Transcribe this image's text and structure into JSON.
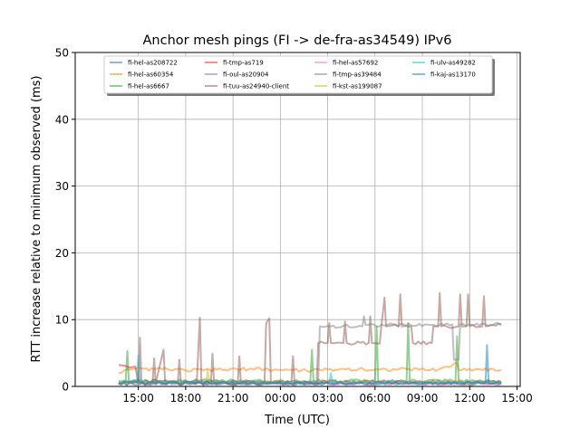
{
  "chart_data": {
    "type": "line",
    "title": "Anchor mesh pings (FI -> de-fra-as34549) IPv6",
    "xlabel": "Time (UTC)",
    "ylabel": "RTT increase relative to minimum observed (ms)",
    "x_unit": "hours since 00:00 of first day",
    "xlim": [
      11.0,
      39.2
    ],
    "ylim": [
      0,
      50
    ],
    "grid": true,
    "legend_placement": "upper center",
    "xticks": [
      {
        "value": 15,
        "label": "15:00"
      },
      {
        "value": 18,
        "label": "18:00"
      },
      {
        "value": 21,
        "label": "21:00"
      },
      {
        "value": 24,
        "label": "00:00"
      },
      {
        "value": 27,
        "label": "03:00"
      },
      {
        "value": 30,
        "label": "06:00"
      },
      {
        "value": 33,
        "label": "09:00"
      },
      {
        "value": 36,
        "label": "12:00"
      },
      {
        "value": 39,
        "label": "15:00"
      }
    ],
    "yticks": [
      {
        "value": 0,
        "label": "0"
      },
      {
        "value": 10,
        "label": "10"
      },
      {
        "value": 20,
        "label": "20"
      },
      {
        "value": 30,
        "label": "30"
      },
      {
        "value": 40,
        "label": "40"
      },
      {
        "value": 50,
        "label": "50"
      }
    ],
    "series": [
      {
        "name": "fi-hel-as208722",
        "color": "#1f77b4",
        "points": [
          [
            13.75,
            0.4
          ],
          [
            20,
            0.5
          ],
          [
            26,
            0.4
          ],
          [
            32,
            0.5
          ],
          [
            38,
            0.4
          ]
        ]
      },
      {
        "name": "fi-hel-as60354",
        "color": "#ff7f0e",
        "points": [
          [
            13.75,
            2.0
          ],
          [
            14.5,
            2.5
          ],
          [
            16,
            2.6
          ],
          [
            18,
            2.4
          ],
          [
            20,
            2.5
          ],
          [
            22,
            2.6
          ],
          [
            24,
            2.5
          ],
          [
            26,
            2.4
          ],
          [
            28,
            2.6
          ],
          [
            30,
            2.5
          ],
          [
            32,
            2.6
          ],
          [
            34,
            2.5
          ],
          [
            35.2,
            3.5
          ],
          [
            35.3,
            2.5
          ],
          [
            36.5,
            2.6
          ],
          [
            38,
            2.5
          ]
        ]
      },
      {
        "name": "fi-hel-as6667",
        "color": "#2ca02c",
        "points": [
          [
            13.75,
            0.8
          ],
          [
            14.2,
            0.8
          ],
          [
            14.3,
            5.3
          ],
          [
            14.4,
            0.8
          ],
          [
            25.9,
            0.8
          ],
          [
            26.0,
            5.5
          ],
          [
            26.1,
            0.8
          ],
          [
            30.0,
            0.8
          ],
          [
            30.1,
            9.0
          ],
          [
            30.2,
            0.8
          ],
          [
            32.0,
            0.8
          ],
          [
            32.1,
            9.5
          ],
          [
            32.2,
            0.8
          ],
          [
            35.1,
            0.8
          ],
          [
            35.2,
            7.5
          ],
          [
            35.3,
            0.8
          ],
          [
            38,
            0.7
          ]
        ]
      },
      {
        "name": "fi-tmp-as719",
        "color": "#d62728",
        "points": [
          [
            13.75,
            3.2
          ],
          [
            14.5,
            2.8
          ],
          [
            14.8,
            3.0
          ],
          [
            15.0,
            0.8
          ],
          [
            26,
            0.7
          ],
          [
            38,
            0.6
          ]
        ]
      },
      {
        "name": "fi-oul-as20904",
        "color": "#9467bd",
        "points": [
          [
            13.75,
            0.5
          ],
          [
            20,
            0.6
          ],
          [
            28,
            0.5
          ],
          [
            38,
            0.5
          ]
        ]
      },
      {
        "name": "fi-tuu-as24940-client",
        "color": "#8c564b",
        "points": [
          [
            13.75,
            0.5
          ],
          [
            15.0,
            0.5
          ],
          [
            15.1,
            7.3
          ],
          [
            15.2,
            0.6
          ],
          [
            15.9,
            0.5
          ],
          [
            16.0,
            4.2
          ],
          [
            16.1,
            0.5
          ],
          [
            16.6,
            5.5
          ],
          [
            16.7,
            0.6
          ],
          [
            17.5,
            0.5
          ],
          [
            17.6,
            4.0
          ],
          [
            17.7,
            0.5
          ],
          [
            18.7,
            0.5
          ],
          [
            18.9,
            10.3
          ],
          [
            19.0,
            0.5
          ],
          [
            19.6,
            0.5
          ],
          [
            19.7,
            4.9
          ],
          [
            19.8,
            0.5
          ],
          [
            21.3,
            0.5
          ],
          [
            21.4,
            4.5
          ],
          [
            21.5,
            0.5
          ],
          [
            23.0,
            0.5
          ],
          [
            23.1,
            9.5
          ],
          [
            23.3,
            10.2
          ],
          [
            23.4,
            0.5
          ],
          [
            24.7,
            0.5
          ],
          [
            24.8,
            4.5
          ],
          [
            24.9,
            0.5
          ],
          [
            26.3,
            0.5
          ],
          [
            26.4,
            6.5
          ],
          [
            27.0,
            6.5
          ],
          [
            27.1,
            9.5
          ],
          [
            27.2,
            6.5
          ],
          [
            28.0,
            6.5
          ],
          [
            28.1,
            9.7
          ],
          [
            28.2,
            6.5
          ],
          [
            29.6,
            6.5
          ],
          [
            29.7,
            10.5
          ],
          [
            29.8,
            6.5
          ],
          [
            30.3,
            6.4
          ],
          [
            30.4,
            9.0
          ],
          [
            30.6,
            13.3
          ],
          [
            30.7,
            9.0
          ],
          [
            31.5,
            9.0
          ],
          [
            31.6,
            13.8
          ],
          [
            31.7,
            9.0
          ],
          [
            32.3,
            9.0
          ],
          [
            32.4,
            6.5
          ],
          [
            33.6,
            6.5
          ],
          [
            33.7,
            9.0
          ],
          [
            34.0,
            9.0
          ],
          [
            34.1,
            14.0
          ],
          [
            34.2,
            9.0
          ],
          [
            35.3,
            9.0
          ],
          [
            35.4,
            13.8
          ],
          [
            35.5,
            9.0
          ],
          [
            35.8,
            9.0
          ],
          [
            35.9,
            13.8
          ],
          [
            36.0,
            9.0
          ],
          [
            36.8,
            9.0
          ],
          [
            36.9,
            13.5
          ],
          [
            37.0,
            9.0
          ],
          [
            38.0,
            9.2
          ]
        ]
      },
      {
        "name": "fi-hel-as57692",
        "color": "#e377c2",
        "points": [
          [
            13.75,
            0.4
          ],
          [
            24,
            0.5
          ],
          [
            38,
            0.4
          ]
        ]
      },
      {
        "name": "fi-tmp-as39484",
        "color": "#7f7f7f",
        "points": [
          [
            13.75,
            0.4
          ],
          [
            26.4,
            0.4
          ],
          [
            26.5,
            9.0
          ],
          [
            29.2,
            9.0
          ],
          [
            29.3,
            10.5
          ],
          [
            29.4,
            9.2
          ],
          [
            33.5,
            9.2
          ],
          [
            34.9,
            9.3
          ],
          [
            35.0,
            4.0
          ],
          [
            35.3,
            4.0
          ],
          [
            35.4,
            9.3
          ],
          [
            38.0,
            9.3
          ]
        ]
      },
      {
        "name": "fi-kst-as199087",
        "color": "#bcbd22",
        "points": [
          [
            13.75,
            0.7
          ],
          [
            19.3,
            0.7
          ],
          [
            19.4,
            2.5
          ],
          [
            19.5,
            0.7
          ],
          [
            38,
            0.6
          ]
        ]
      },
      {
        "name": "fi-ulv-as49282",
        "color": "#17becf",
        "points": [
          [
            13.75,
            0.6
          ],
          [
            14.9,
            0.6
          ],
          [
            15.0,
            4.6
          ],
          [
            15.1,
            0.6
          ],
          [
            27.1,
            0.6
          ],
          [
            27.2,
            2.0
          ],
          [
            27.3,
            0.6
          ],
          [
            38,
            0.6
          ]
        ]
      },
      {
        "name": "fi-kaj-as13170",
        "color": "#1f77b4",
        "points": [
          [
            13.75,
            0.5
          ],
          [
            37.0,
            0.5
          ],
          [
            37.1,
            6.2
          ],
          [
            37.2,
            0.5
          ],
          [
            38,
            0.5
          ]
        ]
      }
    ]
  }
}
